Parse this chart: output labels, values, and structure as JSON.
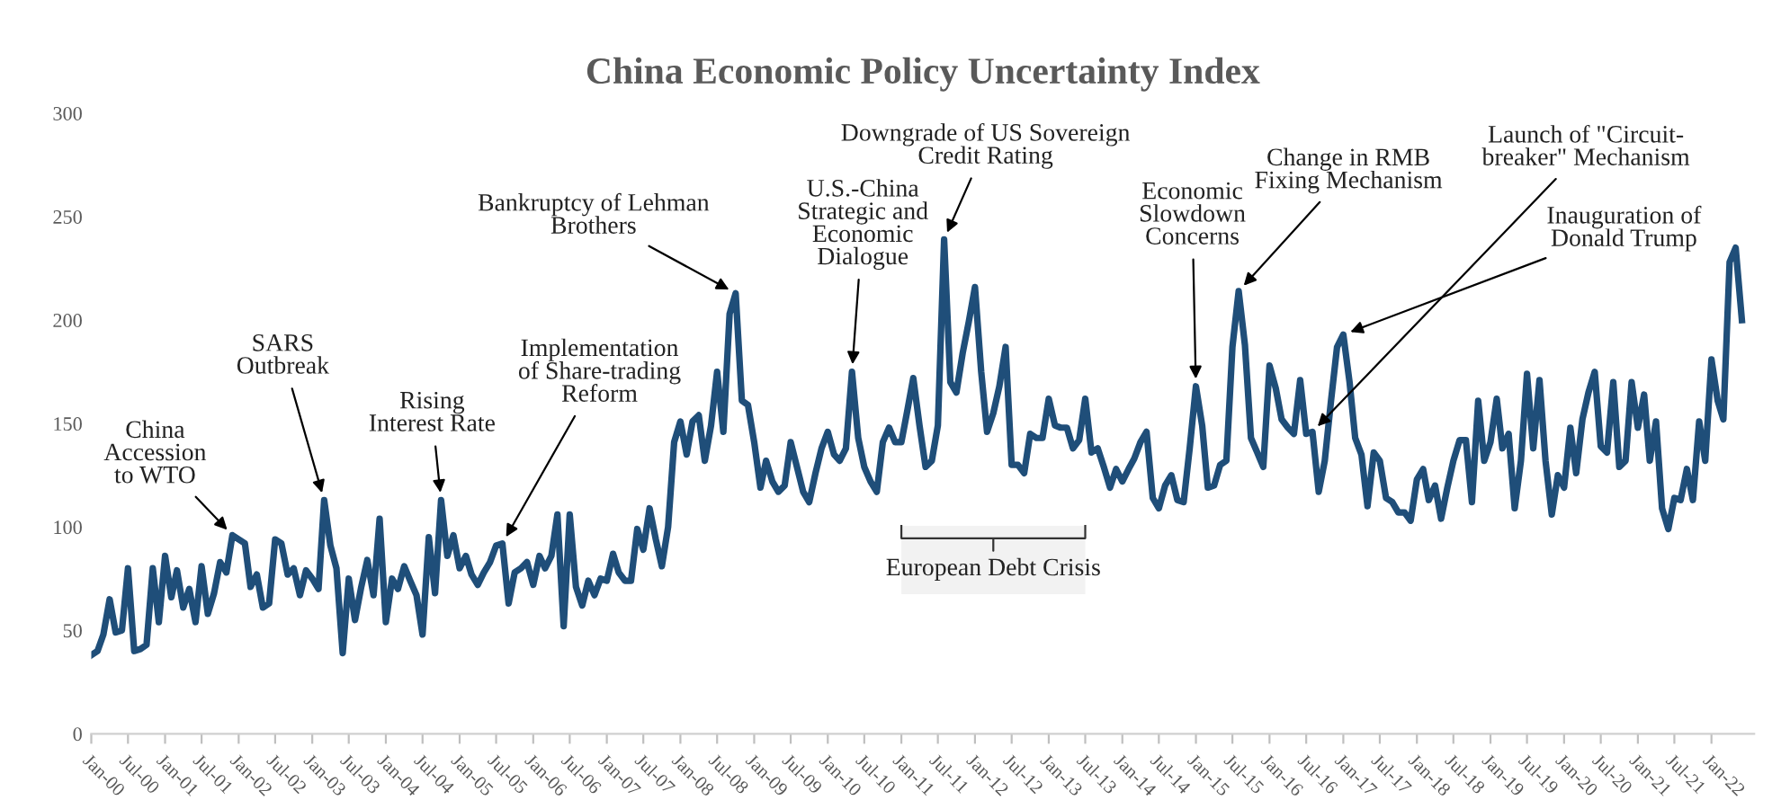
{
  "chart_data": {
    "type": "line",
    "title": "China Economic Policy Uncertainty Index",
    "x": [
      "2000-01",
      "2000-02",
      "2000-03",
      "2000-04",
      "2000-05",
      "2000-06",
      "2000-07",
      "2000-08",
      "2000-09",
      "2000-10",
      "2000-11",
      "2000-12",
      "2001-01",
      "2001-02",
      "2001-03",
      "2001-04",
      "2001-05",
      "2001-06",
      "2001-07",
      "2001-08",
      "2001-09",
      "2001-10",
      "2001-11",
      "2001-12",
      "2002-01",
      "2002-02",
      "2002-03",
      "2002-04",
      "2002-05",
      "2002-06",
      "2002-07",
      "2002-08",
      "2002-09",
      "2002-10",
      "2002-11",
      "2002-12",
      "2003-01",
      "2003-02",
      "2003-03",
      "2003-04",
      "2003-05",
      "2003-06",
      "2003-07",
      "2003-08",
      "2003-09",
      "2003-10",
      "2003-11",
      "2003-12",
      "2004-01",
      "2004-02",
      "2004-03",
      "2004-04",
      "2004-05",
      "2004-06",
      "2004-07",
      "2004-08",
      "2004-09",
      "2004-10",
      "2004-11",
      "2004-12",
      "2005-01",
      "2005-02",
      "2005-03",
      "2005-04",
      "2005-05",
      "2005-06",
      "2005-07",
      "2005-08",
      "2005-09",
      "2005-10",
      "2005-11",
      "2005-12",
      "2006-01",
      "2006-02",
      "2006-03",
      "2006-04",
      "2006-05",
      "2006-06",
      "2006-07",
      "2006-08",
      "2006-09",
      "2006-10",
      "2006-11",
      "2006-12",
      "2007-01",
      "2007-02",
      "2007-03",
      "2007-04",
      "2007-05",
      "2007-06",
      "2007-07",
      "2007-08",
      "2007-09",
      "2007-10",
      "2007-11",
      "2007-12",
      "2008-01",
      "2008-02",
      "2008-03",
      "2008-04",
      "2008-05",
      "2008-06",
      "2008-07",
      "2008-08",
      "2008-09",
      "2008-10",
      "2008-11",
      "2008-12",
      "2009-01",
      "2009-02",
      "2009-03",
      "2009-04",
      "2009-05",
      "2009-06",
      "2009-07",
      "2009-08",
      "2009-09",
      "2009-10",
      "2009-11",
      "2009-12",
      "2010-01",
      "2010-02",
      "2010-03",
      "2010-04",
      "2010-05",
      "2010-06",
      "2010-07",
      "2010-08",
      "2010-09",
      "2010-10",
      "2010-11",
      "2010-12",
      "2011-01",
      "2011-02",
      "2011-03",
      "2011-04",
      "2011-05",
      "2011-06",
      "2011-07",
      "2011-08",
      "2011-09",
      "2011-10",
      "2011-11",
      "2011-12",
      "2012-01",
      "2012-02",
      "2012-03",
      "2012-04",
      "2012-05",
      "2012-06",
      "2012-07",
      "2012-08",
      "2012-09",
      "2012-10",
      "2012-11",
      "2012-12",
      "2013-01",
      "2013-02",
      "2013-03",
      "2013-04",
      "2013-05",
      "2013-06",
      "2013-07",
      "2013-08",
      "2013-09",
      "2013-10",
      "2013-11",
      "2013-12",
      "2014-01",
      "2014-02",
      "2014-03",
      "2014-04",
      "2014-05",
      "2014-06",
      "2014-07",
      "2014-08",
      "2014-09",
      "2014-10",
      "2014-11",
      "2014-12",
      "2015-01",
      "2015-02",
      "2015-03",
      "2015-04",
      "2015-05",
      "2015-06",
      "2015-07",
      "2015-08",
      "2015-09",
      "2015-10",
      "2015-11",
      "2015-12",
      "2016-01",
      "2016-02",
      "2016-03",
      "2016-04",
      "2016-05",
      "2016-06",
      "2016-07",
      "2016-08",
      "2016-09",
      "2016-10",
      "2016-11",
      "2016-12",
      "2017-01",
      "2017-02",
      "2017-03",
      "2017-04",
      "2017-05",
      "2017-06",
      "2017-07",
      "2017-08",
      "2017-09",
      "2017-10",
      "2017-11",
      "2017-12",
      "2018-01",
      "2018-02",
      "2018-03",
      "2018-04",
      "2018-05",
      "2018-06",
      "2018-07",
      "2018-08",
      "2018-09",
      "2018-10",
      "2018-11",
      "2018-12",
      "2019-01",
      "2019-02",
      "2019-03",
      "2019-04",
      "2019-05",
      "2019-06",
      "2019-07",
      "2019-08",
      "2019-09",
      "2019-10",
      "2019-11",
      "2019-12",
      "2020-01",
      "2020-02",
      "2020-03",
      "2020-04",
      "2020-05",
      "2020-06",
      "2020-07",
      "2020-08",
      "2020-09",
      "2020-10",
      "2020-11",
      "2020-12",
      "2021-01",
      "2021-02",
      "2021-03",
      "2021-04",
      "2021-05",
      "2021-06",
      "2021-07",
      "2021-08",
      "2021-09",
      "2021-10",
      "2021-11",
      "2021-12",
      "2022-01",
      "2022-02",
      "2022-03",
      "2022-04",
      "2022-05",
      "2022-06"
    ],
    "series": [
      {
        "color": "#1f4e79",
        "values": [
          38,
          40,
          48,
          65,
          49,
          50,
          80,
          40,
          41,
          43,
          80,
          54,
          86,
          66,
          79,
          61,
          70,
          54,
          81,
          58,
          68,
          83,
          78,
          96,
          94,
          92,
          71,
          77,
          61,
          63,
          94,
          92,
          77,
          80,
          67,
          79,
          75,
          70,
          113,
          91,
          80,
          39,
          75,
          55,
          71,
          84,
          67,
          104,
          54,
          75,
          70,
          81,
          74,
          67,
          48,
          95,
          68,
          113,
          86,
          96,
          80,
          86,
          77,
          72,
          78,
          83,
          91,
          92,
          63,
          78,
          80,
          83,
          72,
          86,
          80,
          86,
          106,
          52,
          106,
          71,
          62,
          74,
          67,
          75,
          74,
          87,
          78,
          74,
          74,
          99,
          89,
          109,
          94,
          81,
          100,
          141,
          151,
          135,
          151,
          154,
          132,
          149,
          175,
          146,
          203,
          213,
          161,
          159,
          141,
          119,
          132,
          122,
          117,
          120,
          141,
          129,
          117,
          112,
          126,
          138,
          146,
          135,
          132,
          138,
          175,
          143,
          129,
          122,
          117,
          141,
          148,
          141,
          141,
          157,
          172,
          149,
          129,
          132,
          149,
          239,
          170,
          165,
          184,
          199,
          216,
          175,
          146,
          155,
          168,
          187,
          130,
          130,
          126,
          145,
          143,
          143,
          162,
          149,
          148,
          148,
          138,
          142,
          162,
          136,
          138,
          129,
          119,
          128,
          122,
          128,
          133,
          141,
          146,
          114,
          109,
          120,
          125,
          113,
          112,
          138,
          168,
          149,
          119,
          120,
          130,
          132,
          187,
          214,
          188,
          143,
          136,
          129,
          178,
          167,
          152,
          148,
          145,
          171,
          145,
          146,
          117,
          132,
          161,
          187,
          193,
          170,
          143,
          135,
          110,
          136,
          132,
          114,
          112,
          107,
          107,
          103,
          123,
          128,
          113,
          120,
          104,
          119,
          132,
          142,
          142,
          112,
          161,
          132,
          141,
          162,
          138,
          145,
          109,
          132,
          174,
          138,
          171,
          132,
          106,
          125,
          119,
          148,
          126,
          152,
          165,
          175,
          139,
          136,
          170,
          129,
          132,
          170,
          148,
          164,
          132,
          151,
          109,
          99,
          114,
          113,
          128,
          113,
          151,
          132,
          181,
          161,
          152,
          228,
          235,
          200
        ]
      }
    ],
    "xlim": [
      "2000-01",
      "2022-08"
    ],
    "xticks": [
      {
        "value": "2000-01",
        "label": "Jan-00"
      },
      {
        "value": "2000-07",
        "label": "Jul-00"
      },
      {
        "value": "2001-01",
        "label": "Jan-01"
      },
      {
        "value": "2001-07",
        "label": "Jul-01"
      },
      {
        "value": "2002-01",
        "label": "Jan-02"
      },
      {
        "value": "2002-07",
        "label": "Jul-02"
      },
      {
        "value": "2003-01",
        "label": "Jan-03"
      },
      {
        "value": "2003-07",
        "label": "Jul-03"
      },
      {
        "value": "2004-01",
        "label": "Jan-04"
      },
      {
        "value": "2004-07",
        "label": "Jul-04"
      },
      {
        "value": "2005-01",
        "label": "Jan-05"
      },
      {
        "value": "2005-07",
        "label": "Jul-05"
      },
      {
        "value": "2006-01",
        "label": "Jan-06"
      },
      {
        "value": "2006-07",
        "label": "Jul-06"
      },
      {
        "value": "2007-01",
        "label": "Jan-07"
      },
      {
        "value": "2007-07",
        "label": "Jul-07"
      },
      {
        "value": "2008-01",
        "label": "Jan-08"
      },
      {
        "value": "2008-07",
        "label": "Jul-08"
      },
      {
        "value": "2009-01",
        "label": "Jan-09"
      },
      {
        "value": "2009-07",
        "label": "Jul-09"
      },
      {
        "value": "2010-01",
        "label": "Jan-10"
      },
      {
        "value": "2010-07",
        "label": "Jul-10"
      },
      {
        "value": "2011-01",
        "label": "Jan-11"
      },
      {
        "value": "2011-07",
        "label": "Jul-11"
      },
      {
        "value": "2012-01",
        "label": "Jan-12"
      },
      {
        "value": "2012-07",
        "label": "Jul-12"
      },
      {
        "value": "2013-01",
        "label": "Jan-13"
      },
      {
        "value": "2013-07",
        "label": "Jul-13"
      },
      {
        "value": "2014-01",
        "label": "Jan-14"
      },
      {
        "value": "2014-07",
        "label": "Jul-14"
      },
      {
        "value": "2015-01",
        "label": "Jan-15"
      },
      {
        "value": "2015-07",
        "label": "Jul-15"
      },
      {
        "value": "2016-01",
        "label": "Jan-16"
      },
      {
        "value": "2016-07",
        "label": "Jul-16"
      },
      {
        "value": "2017-01",
        "label": "Jan-17"
      },
      {
        "value": "2017-07",
        "label": "Jul-17"
      },
      {
        "value": "2018-01",
        "label": "Jan-18"
      },
      {
        "value": "2018-07",
        "label": "Jul-18"
      },
      {
        "value": "2019-01",
        "label": "Jan-19"
      },
      {
        "value": "2019-07",
        "label": "Jul-19"
      },
      {
        "value": "2020-01",
        "label": "Jan-20"
      },
      {
        "value": "2020-07",
        "label": "Jul-20"
      },
      {
        "value": "2021-01",
        "label": "Jan-21"
      },
      {
        "value": "2021-07",
        "label": "Jul-21"
      },
      {
        "value": "2022-01",
        "label": "Jan-22"
      }
    ],
    "ylim": [
      0,
      300
    ],
    "yticks": [
      0,
      50,
      100,
      150,
      200,
      250,
      300
    ],
    "annotations": [
      {
        "text": "China\nAccession\nto WTO",
        "x": "2001-12",
        "y": 96
      },
      {
        "text": "SARS\nOutbreak",
        "x": "2003-03",
        "y": 113
      },
      {
        "text": "Rising\nInterest Rate",
        "x": "2004-10",
        "y": 113
      },
      {
        "text": "Implementation\nof Share-trading\nReform",
        "x": "2005-08",
        "y": 92
      },
      {
        "text": "Bankruptcy of Lehman\nBrothers",
        "x": "2008-10",
        "y": 213
      },
      {
        "text": "U.S.-China\nStrategic and\nEconomic\nDialogue",
        "x": "2010-05",
        "y": 175
      },
      {
        "text": "Downgrade of US Sovereign\nCredit Rating",
        "x": "2011-08",
        "y": 239
      },
      {
        "text": "Economic\nSlowdown\nConcerns",
        "x": "2015-01",
        "y": 168
      },
      {
        "text": "Change in RMB\nFixing Mechanism",
        "x": "2015-08",
        "y": 214
      },
      {
        "text": "Launch of \"Circuit-\nbreaker\" Mechanism",
        "x": "2016-08",
        "y": 146
      },
      {
        "text": "Inauguration of\nDonald Trump",
        "x": "2017-01",
        "y": 193
      }
    ],
    "bands": [
      {
        "axis": "x",
        "from": "2011-01",
        "to": "2013-07",
        "label": "European Debt Crisis"
      }
    ],
    "grid": false,
    "legend": false,
    "marker": "none",
    "line_style": "solid"
  }
}
